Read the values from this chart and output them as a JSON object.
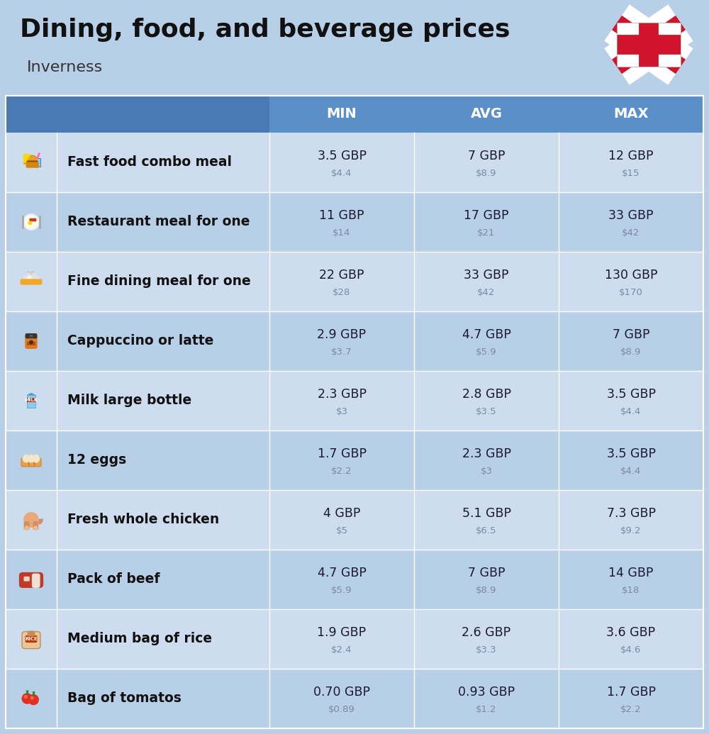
{
  "title": "Dining, food, and beverage prices",
  "subtitle": "Inverness",
  "background_color": "#b8cfe8",
  "header_bg_color": "#5b8fc9",
  "header_dark_col": "#4a7ab5",
  "header_text_color": "#ffffff",
  "row_bg_color_1": "#cddcee",
  "row_bg_color_2": "#b8cfe8",
  "item_name_color": "#111111",
  "price_gbp_color": "#1a1a2e",
  "price_usd_color": "#7a8aa0",
  "divider_color": "#ffffff",
  "col_headers": [
    "MIN",
    "AVG",
    "MAX"
  ],
  "rows": [
    {
      "name": "Fast food combo meal",
      "min_gbp": "3.5 GBP",
      "min_usd": "$4.4",
      "avg_gbp": "7 GBP",
      "avg_usd": "$8.9",
      "max_gbp": "12 GBP",
      "max_usd": "$15"
    },
    {
      "name": "Restaurant meal for one",
      "min_gbp": "11 GBP",
      "min_usd": "$14",
      "avg_gbp": "17 GBP",
      "avg_usd": "$21",
      "max_gbp": "33 GBP",
      "max_usd": "$42"
    },
    {
      "name": "Fine dining meal for one",
      "min_gbp": "22 GBP",
      "min_usd": "$28",
      "avg_gbp": "33 GBP",
      "avg_usd": "$42",
      "max_gbp": "130 GBP",
      "max_usd": "$170"
    },
    {
      "name": "Cappuccino or latte",
      "min_gbp": "2.9 GBP",
      "min_usd": "$3.7",
      "avg_gbp": "4.7 GBP",
      "avg_usd": "$5.9",
      "max_gbp": "7 GBP",
      "max_usd": "$8.9"
    },
    {
      "name": "Milk large bottle",
      "min_gbp": "2.3 GBP",
      "min_usd": "$3",
      "avg_gbp": "2.8 GBP",
      "avg_usd": "$3.5",
      "max_gbp": "3.5 GBP",
      "max_usd": "$4.4"
    },
    {
      "name": "12 eggs",
      "min_gbp": "1.7 GBP",
      "min_usd": "$2.2",
      "avg_gbp": "2.3 GBP",
      "avg_usd": "$3",
      "max_gbp": "3.5 GBP",
      "max_usd": "$4.4"
    },
    {
      "name": "Fresh whole chicken",
      "min_gbp": "4 GBP",
      "min_usd": "$5",
      "avg_gbp": "5.1 GBP",
      "avg_usd": "$6.5",
      "max_gbp": "7.3 GBP",
      "max_usd": "$9.2"
    },
    {
      "name": "Pack of beef",
      "min_gbp": "4.7 GBP",
      "min_usd": "$5.9",
      "avg_gbp": "7 GBP",
      "avg_usd": "$8.9",
      "max_gbp": "14 GBP",
      "max_usd": "$18"
    },
    {
      "name": "Medium bag of rice",
      "min_gbp": "1.9 GBP",
      "min_usd": "$2.4",
      "avg_gbp": "2.6 GBP",
      "avg_usd": "$3.3",
      "max_gbp": "3.6 GBP",
      "max_usd": "$4.6"
    },
    {
      "name": "Bag of tomatos",
      "min_gbp": "0.70 GBP",
      "min_usd": "$0.89",
      "avg_gbp": "0.93 GBP",
      "avg_usd": "$1.2",
      "max_gbp": "1.7 GBP",
      "max_usd": "$2.2"
    }
  ]
}
